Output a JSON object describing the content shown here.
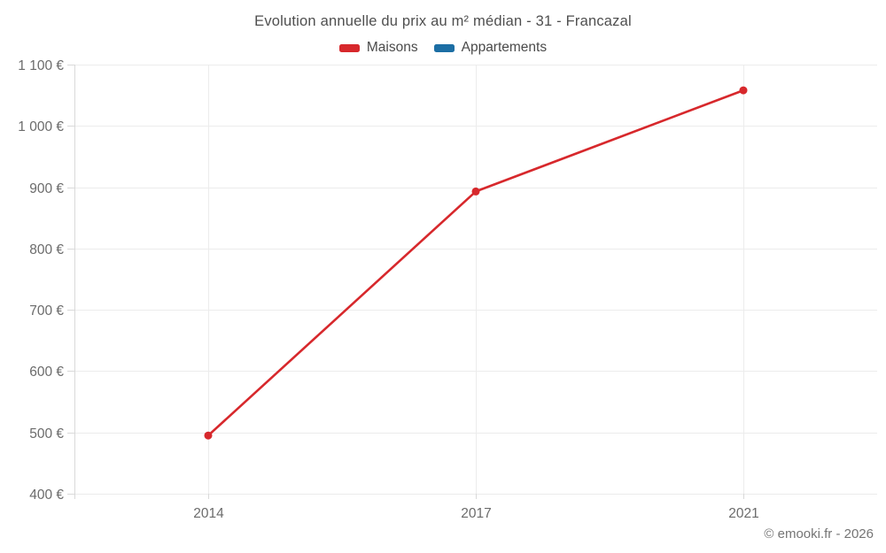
{
  "title": "Evolution annuelle du prix au m² médian - 31 - Francazal",
  "footer": "© emooki.fr - 2026",
  "legend": [
    {
      "label": "Maisons",
      "color": "#d7282c"
    },
    {
      "label": "Appartements",
      "color": "#1c6ea4"
    }
  ],
  "chart_data": {
    "type": "line",
    "title": "Evolution annuelle du prix au m² médian - 31 - Francazal",
    "categories": [
      "2014",
      "2017",
      "2021"
    ],
    "series": [
      {
        "name": "Maisons",
        "color": "#d7282c",
        "values": [
          495,
          893,
          1058
        ]
      },
      {
        "name": "Appartements",
        "color": "#1c6ea4",
        "values": []
      }
    ],
    "ylim": [
      400,
      1100
    ],
    "y_step": 100,
    "y_tick_labels": [
      "400 €",
      "500 €",
      "600 €",
      "700 €",
      "800 €",
      "900 €",
      "1 000 €",
      "1 100 €"
    ],
    "grid": true,
    "legend_position": "top",
    "colors": {
      "gridline": "#ececec",
      "axis": "#d9d9d9",
      "tick_text": "#6b6b6b"
    }
  }
}
